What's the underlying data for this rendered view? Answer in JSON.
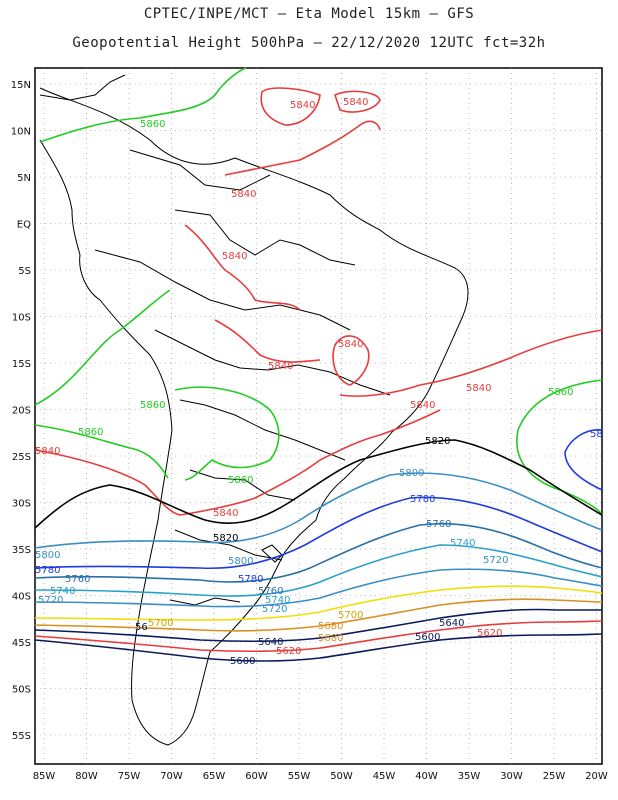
{
  "header": {
    "line1": "CPTEC/INPE/MCT  –  Eta Model 15km – GFS",
    "line2": "Geopotential Height 500hPa – 22/12/2020 12UTC fct=32h"
  },
  "axes": {
    "lat_labels": [
      "15N",
      "10N",
      "5N",
      "EQ",
      "5S",
      "10S",
      "15S",
      "20S",
      "25S",
      "30S",
      "35S",
      "40S",
      "45S",
      "50S",
      "55S"
    ],
    "lon_labels": [
      "85W",
      "80W",
      "75W",
      "70W",
      "65W",
      "60W",
      "55W",
      "50W",
      "45W",
      "40W",
      "35W",
      "30W",
      "25W",
      "20W"
    ]
  },
  "contours": [
    {
      "level": "5860",
      "color": "#22cc22"
    },
    {
      "level": "5840",
      "color": "#e83c3c"
    },
    {
      "level": "5820",
      "color": "#000000"
    },
    {
      "level": "5800",
      "color": "#3a8ec4"
    },
    {
      "level": "5780",
      "color": "#1e3ce0"
    },
    {
      "level": "5760",
      "color": "#2a70a8"
    },
    {
      "level": "5740",
      "color": "#2aa0c8"
    },
    {
      "level": "5720",
      "color": "#3a8ec4"
    },
    {
      "level": "5700",
      "color": "#f0e000"
    },
    {
      "level": "5680",
      "color": "#d89020"
    },
    {
      "level": "5640",
      "color": "#0a1a5a"
    },
    {
      "level": "5620",
      "color": "#e83c3c"
    },
    {
      "level": "5600",
      "color": "#0a1a5a"
    }
  ],
  "labels": {
    "c5860a": "5860",
    "c5860b": "5860",
    "c5860c": "5860",
    "c5860d": "5860",
    "c5860e": "5860",
    "c5840a": "5840",
    "c5840b": "5840",
    "c5840c": "5840",
    "c5840d": "5840",
    "c5840e": "5840",
    "c5840f": "5840",
    "c5840g": "5840",
    "c5840h": "5840",
    "c5840i": "5840",
    "c5840j": "5840",
    "c5840k": "5840",
    "c5880": "58",
    "c5820a": "5820",
    "c5820b": "5820",
    "c5800a": "5800",
    "c5800b": "5800",
    "c5800c": "5800",
    "c5780a": "5780",
    "c5780b": "5780",
    "c5780c": "5780",
    "c5760a": "5760",
    "c5760b": "5760",
    "c5760c": "5760",
    "c5740a": "5740",
    "c5740b": "5740",
    "c5740c": "5740",
    "c5720a": "5720",
    "c5720b": "5720",
    "c5720c": "5720",
    "c5700a": "5700",
    "c5700b": "5700",
    "c5680a": "5680",
    "c5680b": "5680",
    "c5640a": "5640",
    "c5640b": "5640",
    "c5620a": "5620",
    "c5620b": "5620",
    "c5600a": "5600",
    "c5600b": "5600",
    "c56xx": "56"
  }
}
